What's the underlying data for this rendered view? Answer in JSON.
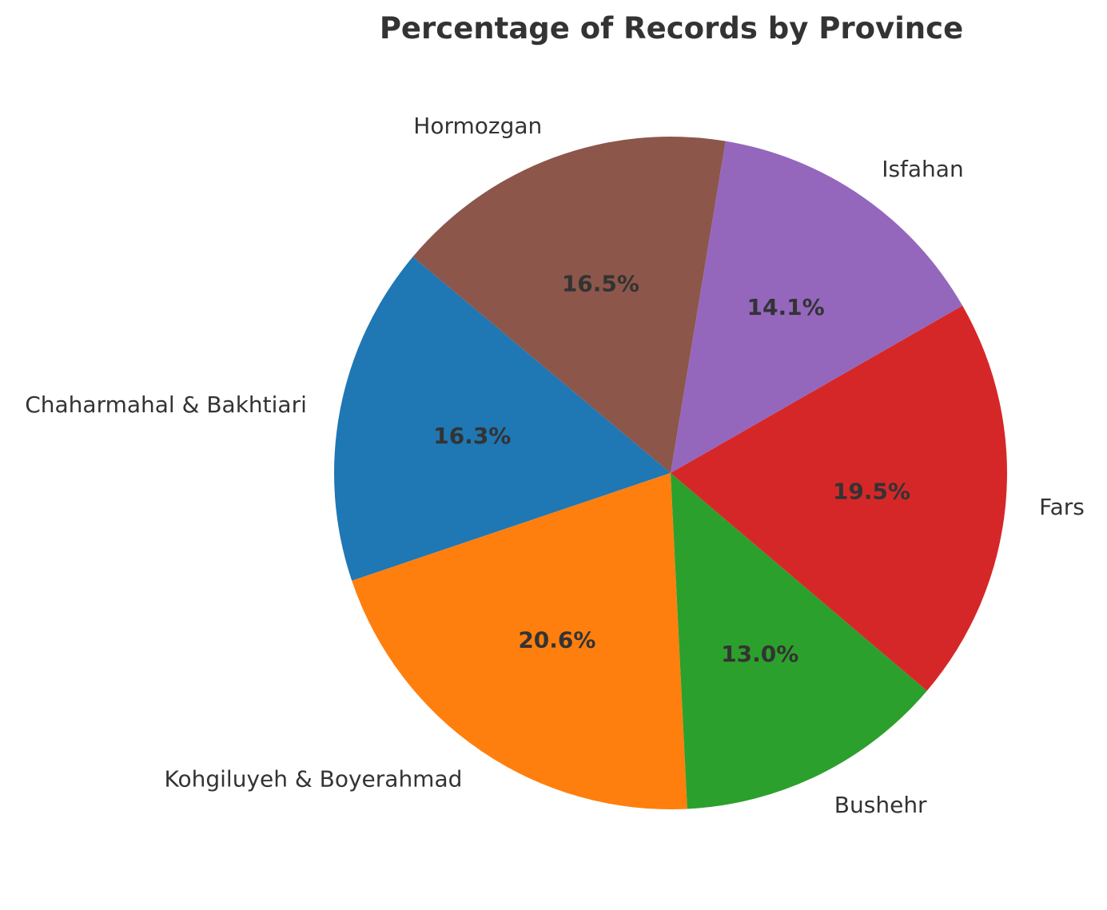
{
  "chart_data": {
    "type": "pie",
    "title": "Percentage of Records by Province",
    "start_angle_deg": 140,
    "direction": "counterclockwise",
    "legend": "none",
    "slices": [
      {
        "label": "Chaharmahal & Bakhtiari",
        "value": 16.3,
        "pct_label": "16.3%",
        "color": "#1f77b4"
      },
      {
        "label": "Kohgiluyeh & Boyerahmad",
        "value": 20.6,
        "pct_label": "20.6%",
        "color": "#ff7f0e"
      },
      {
        "label": "Bushehr",
        "value": 13.0,
        "pct_label": "13.0%",
        "color": "#2ca02c"
      },
      {
        "label": "Fars",
        "value": 19.5,
        "pct_label": "19.5%",
        "color": "#d62728"
      },
      {
        "label": "Isfahan",
        "value": 14.1,
        "pct_label": "14.1%",
        "color": "#9467bd"
      },
      {
        "label": "Hormozgan",
        "value": 16.5,
        "pct_label": "16.5%",
        "color": "#8c564b"
      }
    ]
  }
}
